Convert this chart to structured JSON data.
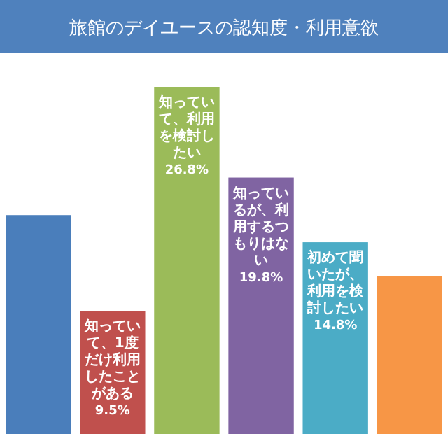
{
  "chart_data": {
    "type": "bar",
    "title": "旅館のデイユースの認知度・利用意欲",
    "categories": [
      null,
      "知っていて、1度だけ利用したことがある",
      "知っていて、利用を検討したい",
      "知っているが、利用するつもりはない",
      "初めて聞いたが、利用を検討したい",
      null
    ],
    "values": [
      16.9,
      9.5,
      26.8,
      19.8,
      14.8,
      12.2
    ],
    "colors": [
      "#4a7ebb",
      "#c0504d",
      "#9bbb59",
      "#8064a2",
      "#4bacc6",
      "#f79646"
    ],
    "value_labels": [
      null,
      "9.5%",
      "26.8%",
      "19.8%",
      "14.8%",
      null
    ]
  }
}
